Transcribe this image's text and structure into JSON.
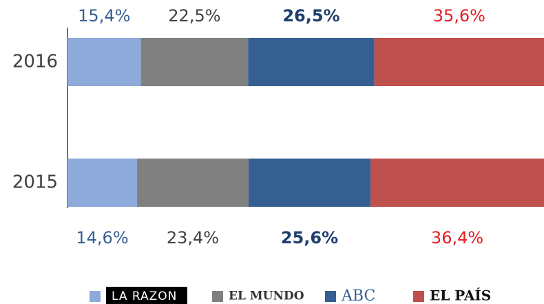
{
  "chart_data": {
    "type": "stacked-bar-horizontal",
    "categories": [
      "2016",
      "2015"
    ],
    "series": [
      {
        "name": "LA RAZON",
        "color": "#8eaadb",
        "values": [
          15.4,
          14.6
        ],
        "value_labels": [
          "15,4%",
          "14,6%"
        ]
      },
      {
        "name": "EL MUNDO",
        "color": "#808080",
        "values": [
          22.5,
          23.4
        ],
        "value_labels": [
          "22,5%",
          "23,4%"
        ]
      },
      {
        "name": "ABC",
        "color": "#365f91",
        "values": [
          26.5,
          25.6
        ],
        "value_labels": [
          "26,5%",
          "25,6%"
        ]
      },
      {
        "name": "EL PAÍS",
        "color": "#c0504d",
        "values": [
          35.6,
          36.4
        ],
        "value_labels": [
          "35,6%",
          "36,4%"
        ]
      }
    ],
    "xlim": [
      0,
      100
    ]
  }
}
